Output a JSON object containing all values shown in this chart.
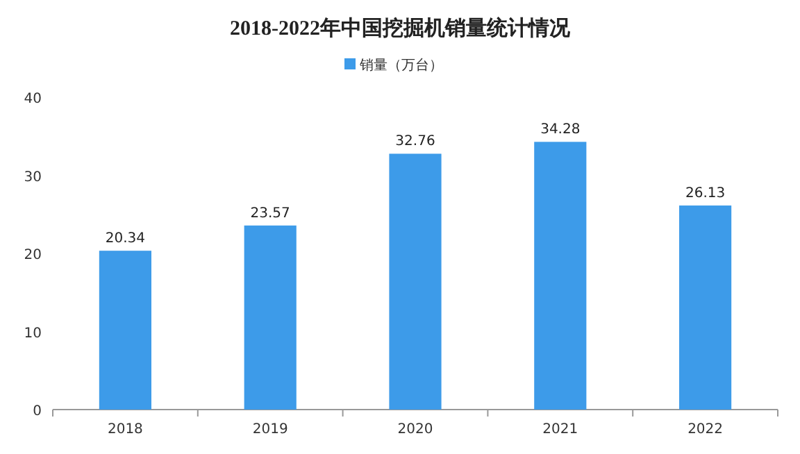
{
  "chart_data": {
    "type": "bar",
    "title": "2018-2022年中国挖掘机销量统计情况",
    "categories": [
      "2018",
      "2019",
      "2020",
      "2021",
      "2022"
    ],
    "series": [
      {
        "name": "销量（万台）",
        "color": "#3d9be9",
        "values": [
          20.34,
          23.57,
          32.76,
          34.28,
          26.13
        ]
      }
    ],
    "ylim": [
      0,
      40
    ],
    "yticks": [
      0,
      10,
      20,
      30,
      40
    ],
    "data_labels": true,
    "legend": "top",
    "grid": false
  }
}
